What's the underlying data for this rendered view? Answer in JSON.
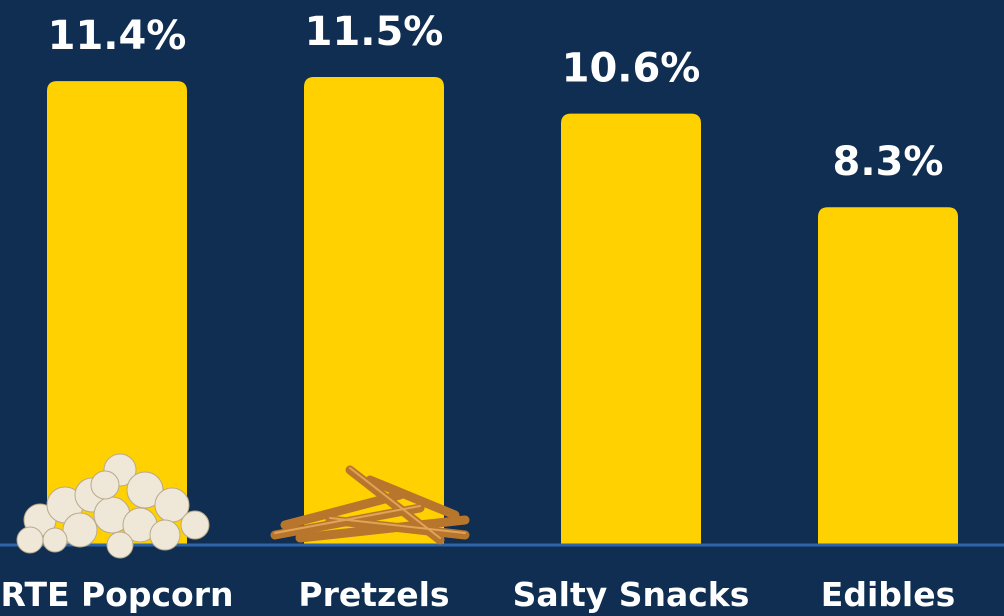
{
  "chart_data": {
    "type": "bar",
    "categories": [
      "RTE Popcorn",
      "Pretzels",
      "Salty Snacks",
      "Edibles"
    ],
    "values": [
      11.4,
      11.5,
      10.6,
      8.3
    ],
    "value_labels": [
      "11.4%",
      "11.5%",
      "10.6%",
      "8.3%"
    ],
    "color": "#ffd100"
  }
}
